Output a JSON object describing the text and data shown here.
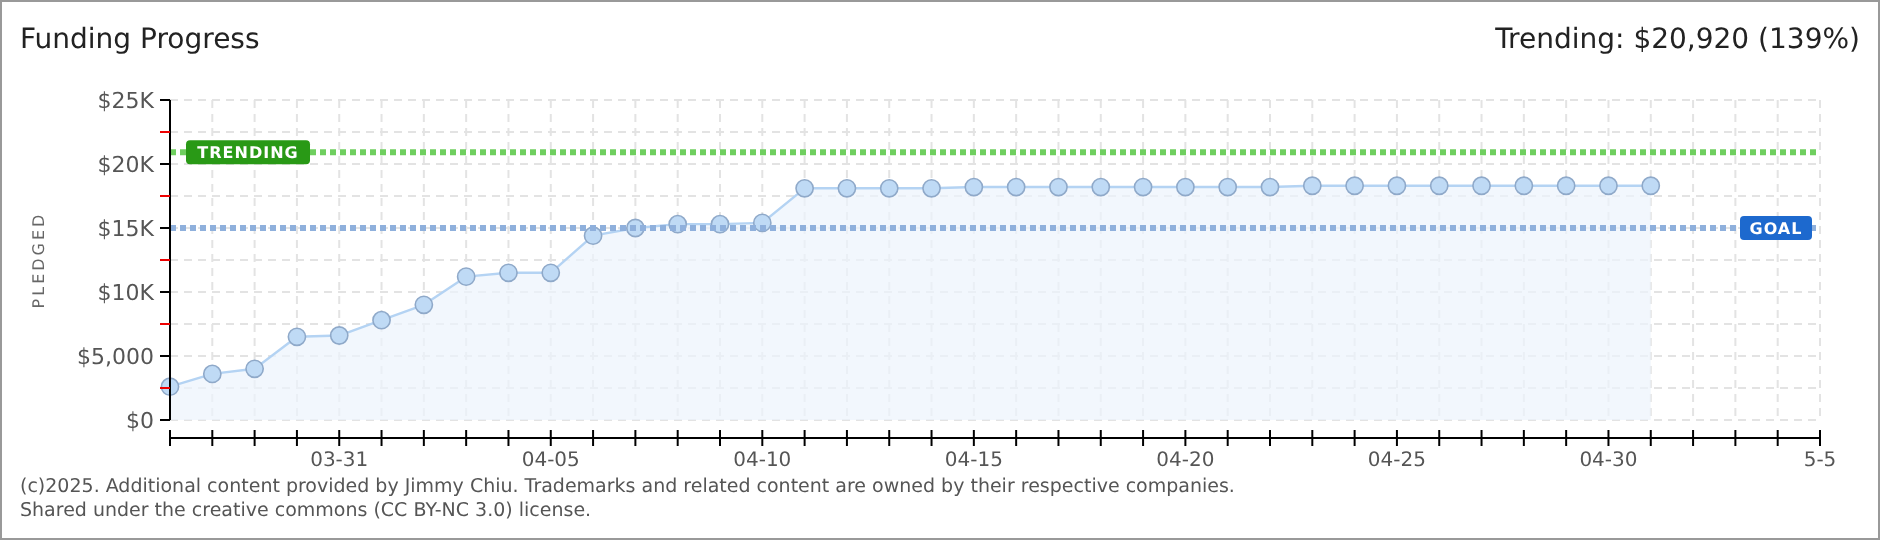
{
  "chart_data": {
    "type": "area",
    "title": "Funding Progress",
    "subtitle": "Trending: $20,920 (139%)",
    "ylabel": "PLEDGED",
    "x": [
      "--03-27",
      "--03-28",
      "--03-29",
      "--03-30",
      "--03-31",
      "--04-01",
      "--04-02",
      "--04-03",
      "--04-04",
      "--04-05",
      "--04-06",
      "--04-07",
      "--04-08",
      "--04-09",
      "--04-10",
      "--04-11",
      "--04-12",
      "--04-13",
      "--04-14",
      "--04-15",
      "--04-16",
      "--04-17",
      "--04-18",
      "--04-19",
      "--04-20",
      "--04-21",
      "--04-22",
      "--04-23",
      "--04-24",
      "--04-25",
      "--04-26",
      "--04-27",
      "--04-28",
      "--04-29",
      "--04-30",
      "--05-01"
    ],
    "series": [
      {
        "color": "#b4d3f3",
        "values": [
          2600,
          3600,
          4000,
          6500,
          6600,
          7800,
          9000,
          11200,
          11500,
          11500,
          14400,
          15000,
          15300,
          15300,
          15400,
          18100,
          18100,
          18100,
          18100,
          18200,
          18200,
          18200,
          18200,
          18200,
          18200,
          18200,
          18200,
          18300,
          18300,
          18300,
          18300,
          18300,
          18300,
          18300,
          18300,
          18300
        ]
      }
    ],
    "xlim": [
      "--03-27",
      "--05-05"
    ],
    "xticks": [
      {
        "value": "--03-27",
        "label": null
      },
      {
        "value": "--03-28",
        "label": null
      },
      {
        "value": "--03-29",
        "label": null
      },
      {
        "value": "--03-30",
        "label": null
      },
      {
        "value": "--03-31",
        "label": "03-31"
      },
      {
        "value": "--04-01",
        "label": null
      },
      {
        "value": "--04-02",
        "label": null
      },
      {
        "value": "--04-03",
        "label": null
      },
      {
        "value": "--04-04",
        "label": null
      },
      {
        "value": "--04-05",
        "label": "04-05"
      },
      {
        "value": "--04-06",
        "label": null
      },
      {
        "value": "--04-07",
        "label": null
      },
      {
        "value": "--04-08",
        "label": null
      },
      {
        "value": "--04-09",
        "label": null
      },
      {
        "value": "--04-10",
        "label": "04-10"
      },
      {
        "value": "--04-11",
        "label": null
      },
      {
        "value": "--04-12",
        "label": null
      },
      {
        "value": "--04-13",
        "label": null
      },
      {
        "value": "--04-14",
        "label": null
      },
      {
        "value": "--04-15",
        "label": "04-15"
      },
      {
        "value": "--04-16",
        "label": null
      },
      {
        "value": "--04-17",
        "label": null
      },
      {
        "value": "--04-18",
        "label": null
      },
      {
        "value": "--04-19",
        "label": null
      },
      {
        "value": "--04-20",
        "label": "04-20"
      },
      {
        "value": "--04-21",
        "label": null
      },
      {
        "value": "--04-22",
        "label": null
      },
      {
        "value": "--04-23",
        "label": null
      },
      {
        "value": "--04-24",
        "label": null
      },
      {
        "value": "--04-25",
        "label": "04-25"
      },
      {
        "value": "--04-26",
        "label": null
      },
      {
        "value": "--04-27",
        "label": null
      },
      {
        "value": "--04-28",
        "label": null
      },
      {
        "value": "--04-29",
        "label": null
      },
      {
        "value": "--04-30",
        "label": "04-30"
      },
      {
        "value": "--05-01",
        "label": null
      },
      {
        "value": "--05-02",
        "label": null
      },
      {
        "value": "--05-03",
        "label": null
      },
      {
        "value": "--05-04",
        "label": null
      },
      {
        "value": "--05-05",
        "label": "5-5"
      }
    ],
    "ylim": [
      0,
      25000
    ],
    "yticks": [
      {
        "value": 0,
        "label": "$0"
      },
      {
        "value": 2500,
        "label": null
      },
      {
        "value": 5000,
        "label": "$5,000"
      },
      {
        "value": 7500,
        "label": null
      },
      {
        "value": 10000,
        "label": "$10K"
      },
      {
        "value": 12500,
        "label": null
      },
      {
        "value": 15000,
        "label": "$15K"
      },
      {
        "value": 17500,
        "label": null
      },
      {
        "value": 20000,
        "label": "$20K"
      },
      {
        "value": 22500,
        "label": null
      },
      {
        "value": 25000,
        "label": "$25K"
      }
    ],
    "ref_lines": [
      {
        "axis": "y",
        "value": 20920,
        "label": "TRENDING",
        "color": "#6fcf5f",
        "line_style": "dotted"
      },
      {
        "axis": "y",
        "value": 15000,
        "label": "GOAL",
        "color": "#8fb0dc",
        "line_style": "dotted"
      }
    ],
    "grid": true,
    "marker": "circle",
    "line_style": "solid",
    "annotations": [
      "(c)2025. Additional content provided by Jimmy Chiu. Trademarks and related content are owned by their respective companies.",
      "Shared under the creative commons (CC BY-NC 3.0) license."
    ]
  }
}
